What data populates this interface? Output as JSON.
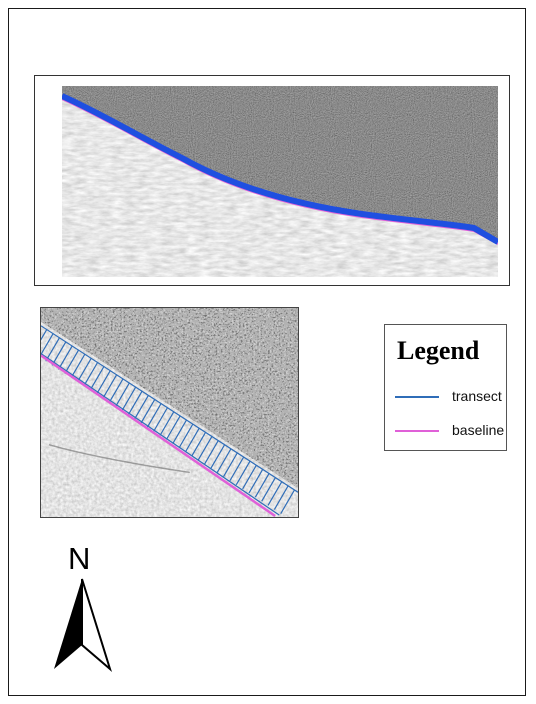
{
  "legend": {
    "title": "Legend",
    "items": [
      {
        "label": "transect",
        "color": "#2f6db8",
        "symbol": "line"
      },
      {
        "label": "baseline",
        "color": "#e060d8",
        "symbol": "line"
      }
    ]
  },
  "north_arrow": {
    "letter": "N",
    "icon": "north-arrow-icon"
  },
  "overview_map": {
    "water_color": "#2a2a2a",
    "land_color": "#dcdcdc",
    "shoreline_color": "#1f4fe0",
    "baseline_color": "#e060d8"
  },
  "detail_map": {
    "transect_color": "#2f6db8",
    "baseline_color": "#e060d8"
  }
}
